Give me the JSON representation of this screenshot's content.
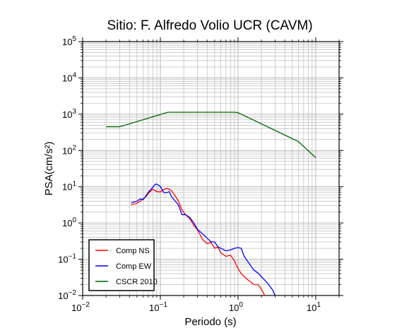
{
  "chart_data": {
    "type": "line",
    "title": "Sitio: F. Alfredo Volio UCR (CAVM)",
    "xlabel": "Periodo (s)",
    "ylabel": "PSA(cm/s²)",
    "x_scale": "log",
    "y_scale": "log",
    "xlim": [
      0.01,
      20
    ],
    "ylim": [
      0.01,
      100000
    ],
    "grid": true,
    "legend_position": "bottom-left",
    "x_ticks": [
      {
        "value": 0.01,
        "base": "10",
        "exp": "−2"
      },
      {
        "value": 0.1,
        "base": "10",
        "exp": "−1"
      },
      {
        "value": 1,
        "base": "10",
        "exp": "0"
      },
      {
        "value": 10,
        "base": "10",
        "exp": "1"
      }
    ],
    "y_ticks": [
      {
        "value": 0.01,
        "base": "10",
        "exp": "−2"
      },
      {
        "value": 0.1,
        "base": "10",
        "exp": "−1"
      },
      {
        "value": 1,
        "base": "10",
        "exp": "0"
      },
      {
        "value": 10,
        "base": "10",
        "exp": "1"
      },
      {
        "value": 100,
        "base": "10",
        "exp": "2"
      },
      {
        "value": 1000,
        "base": "10",
        "exp": "3"
      },
      {
        "value": 10000,
        "base": "10",
        "exp": "4"
      },
      {
        "value": 100000,
        "base": "10",
        "exp": "5"
      }
    ],
    "series": [
      {
        "name": "Comp NS",
        "color": "#ff0000",
        "x": [
          0.042,
          0.05,
          0.055,
          0.06,
          0.065,
          0.07,
          0.08,
          0.09,
          0.1,
          0.11,
          0.12,
          0.13,
          0.14,
          0.15,
          0.17,
          0.19,
          0.21,
          0.24,
          0.27,
          0.3,
          0.35,
          0.4,
          0.45,
          0.5,
          0.55,
          0.6,
          0.7,
          0.8,
          0.9,
          1.0,
          1.1,
          1.2,
          1.4,
          1.6,
          1.8,
          2.0,
          2.2
        ],
        "y": [
          3.2,
          3.5,
          4.0,
          4.7,
          5.2,
          6.5,
          8.5,
          7.3,
          7.2,
          8.3,
          8.9,
          8.6,
          7.6,
          6.2,
          4.1,
          2.3,
          1.7,
          1.3,
          0.85,
          0.65,
          0.35,
          0.27,
          0.29,
          0.2,
          0.22,
          0.15,
          0.12,
          0.13,
          0.09,
          0.055,
          0.04,
          0.033,
          0.025,
          0.02,
          0.02,
          0.015,
          0.01
        ]
      },
      {
        "name": "Comp EW",
        "color": "#0000ff",
        "x": [
          0.042,
          0.05,
          0.055,
          0.06,
          0.065,
          0.07,
          0.08,
          0.085,
          0.09,
          0.1,
          0.11,
          0.12,
          0.13,
          0.14,
          0.15,
          0.17,
          0.19,
          0.21,
          0.24,
          0.27,
          0.3,
          0.35,
          0.4,
          0.45,
          0.5,
          0.55,
          0.6,
          0.7,
          0.8,
          0.9,
          1.0,
          1.1,
          1.2,
          1.4,
          1.6,
          1.8,
          2.0,
          2.4,
          2.8,
          3.0
        ],
        "y": [
          3.6,
          4.0,
          4.6,
          4.4,
          5.5,
          7.0,
          9.6,
          11.5,
          11.8,
          10.2,
          7.0,
          6.8,
          7.3,
          5.2,
          4.4,
          3.2,
          1.7,
          1.7,
          1.4,
          1.0,
          0.67,
          0.5,
          0.38,
          0.3,
          0.3,
          0.22,
          0.2,
          0.17,
          0.18,
          0.2,
          0.21,
          0.2,
          0.12,
          0.075,
          0.05,
          0.042,
          0.033,
          0.022,
          0.014,
          0.01
        ]
      },
      {
        "name": "CSCR 2010",
        "color": "#006400",
        "x": [
          0.02,
          0.03,
          0.125,
          0.9,
          1.0,
          6.0,
          10.0
        ],
        "y": [
          450,
          450,
          1130,
          1130,
          1100,
          175,
          63
        ]
      }
    ]
  }
}
